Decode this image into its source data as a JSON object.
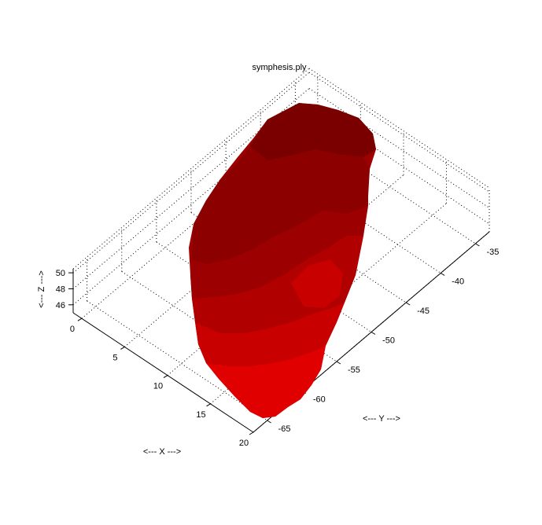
{
  "chart_data": {
    "type": "surface3d",
    "title": "symphesis.ply",
    "xlabel": "<--- X --->",
    "ylabel": "<--- Y --->",
    "zlabel": "<--- Z --->",
    "x_ticks": [
      "0",
      "5",
      "10",
      "15",
      "20"
    ],
    "x_tick_values": [
      0,
      5,
      10,
      15,
      20
    ],
    "y_ticks": [
      "-35",
      "-40",
      "-45",
      "-50",
      "-55",
      "-60",
      "-65"
    ],
    "y_tick_values": [
      -35,
      -40,
      -45,
      -50,
      -55,
      -60,
      -65
    ],
    "z_ticks": [
      "50",
      "48",
      "46"
    ],
    "z_tick_values": [
      50,
      48,
      46
    ],
    "xlim": [
      -1,
      20
    ],
    "ylim": [
      -67,
      -33
    ],
    "zlim": [
      45,
      50.5
    ],
    "grid": true,
    "surface_colors": [
      "#7a0000",
      "#8c0000",
      "#9c0000",
      "#b00000",
      "#c80000",
      "#e00000",
      "#ff0000"
    ]
  }
}
